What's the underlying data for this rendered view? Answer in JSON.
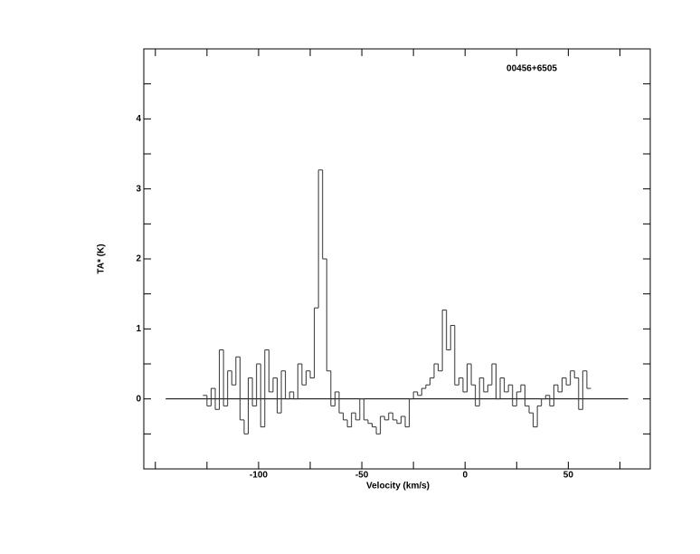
{
  "chart_data": {
    "type": "step",
    "title": "00456+6505",
    "x_label": "Velocity (km/s)",
    "y_label": "TA* (K)",
    "xlim": [
      -155.6,
      89.7
    ],
    "ylim": [
      -1,
      5
    ],
    "xticks": [
      -100,
      -50,
      0,
      50
    ],
    "yticks": [
      0,
      1,
      2,
      3,
      4
    ],
    "xminorticks": [
      -150,
      -125,
      -75,
      -25,
      25,
      75
    ],
    "yminorticks": [
      -0.5,
      0.5,
      1.5,
      2.5,
      3.5,
      4.5
    ],
    "baseline": {
      "x": [
        -145,
        79
      ],
      "y": 0
    },
    "color": "#333333",
    "x": [
      -126,
      -124,
      -122,
      -120,
      -118,
      -116,
      -114,
      -112,
      -110,
      -108,
      -106,
      -104,
      -102,
      -100,
      -98,
      -96,
      -94,
      -92,
      -90,
      -88,
      -86,
      -84,
      -82,
      -80,
      -78,
      -76,
      -74,
      -72,
      -70,
      -68,
      -66,
      -64,
      -62,
      -60,
      -58,
      -56,
      -54,
      -52,
      -50,
      -48,
      -46,
      -44,
      -42,
      -40,
      -38,
      -36,
      -34,
      -32,
      -30,
      -28,
      -26,
      -24,
      -22,
      -20,
      -18,
      -16,
      -14,
      -12,
      -10,
      -8,
      -6,
      -4,
      -2,
      0,
      2,
      4,
      6,
      8,
      10,
      12,
      14,
      16,
      18,
      20,
      22,
      24,
      26,
      28,
      30,
      32,
      34,
      36,
      38,
      40,
      42,
      44,
      46,
      48,
      50,
      52,
      54,
      56,
      58,
      60
    ],
    "values": [
      0.05,
      -0.1,
      0.15,
      -0.15,
      0.7,
      -0.1,
      0.4,
      0.2,
      0.6,
      -0.3,
      -0.5,
      0.3,
      -0.1,
      0.5,
      -0.4,
      0.7,
      0.1,
      0.3,
      -0.2,
      0.4,
      0.0,
      0.1,
      0.0,
      0.5,
      0.2,
      0.4,
      0.3,
      1.3,
      3.27,
      2.0,
      0.4,
      -0.1,
      0.1,
      -0.2,
      -0.3,
      -0.4,
      -0.2,
      -0.3,
      0.0,
      -0.3,
      -0.35,
      -0.4,
      -0.5,
      -0.25,
      -0.3,
      -0.2,
      -0.3,
      -0.35,
      -0.25,
      -0.4,
      0.0,
      0.1,
      0.05,
      0.15,
      0.2,
      0.3,
      0.5,
      0.4,
      1.27,
      0.7,
      1.05,
      0.2,
      0.3,
      0.1,
      0.5,
      0.2,
      -0.1,
      0.3,
      0.1,
      0.2,
      0.5,
      0.0,
      0.3,
      0.1,
      0.2,
      -0.1,
      0.1,
      0.2,
      -0.1,
      -0.2,
      -0.4,
      -0.1,
      0.0,
      0.05,
      -0.1,
      0.2,
      0.1,
      0.3,
      0.2,
      0.4,
      0.3,
      -0.15,
      0.4,
      0.15
    ]
  }
}
